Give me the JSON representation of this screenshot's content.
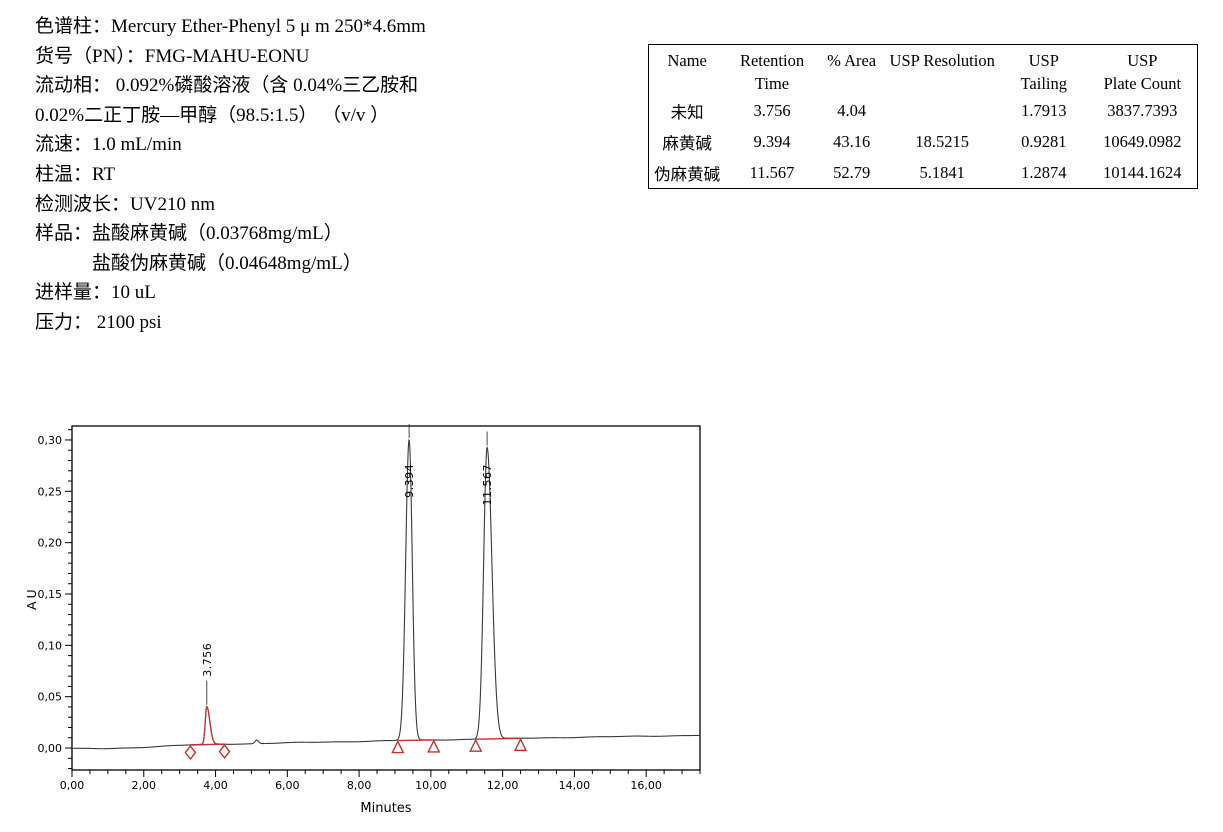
{
  "report": {
    "method_lines": [
      {
        "text": "色谱柱：Mercury Ether-Phenyl  5 μ m 250*4.6mm",
        "indent": false
      },
      {
        "text": "货号（PN）：FMG-MAHU-EONU",
        "indent": false
      },
      {
        "text": "流动相： 0.092%磷酸溶液（含 0.04%三乙胺和",
        "indent": false
      },
      {
        "text": "0.02%二正丁胺—甲醇（98.5:1.5） （v/v ）",
        "indent": false
      },
      {
        "text": "流速：1.0 mL/min",
        "indent": false
      },
      {
        "text": "柱温：RT",
        "indent": false
      },
      {
        "text": "检测波长：UV210 nm",
        "indent": false
      },
      {
        "text": "样品：盐酸麻黄碱（0.03768mg/mL）",
        "indent": false
      },
      {
        "text": "盐酸伪麻黄碱（0.04648mg/mL）",
        "indent": true
      },
      {
        "text": "进样量：10 uL",
        "indent": false
      },
      {
        "text": "压力： 2100 psi",
        "indent": false
      }
    ],
    "table": {
      "headers": [
        {
          "line1": "Name",
          "line2": ""
        },
        {
          "line1": "Retention",
          "line2": "Time"
        },
        {
          "line1": "% Area",
          "line2": ""
        },
        {
          "line1": "USP Resolution",
          "line2": ""
        },
        {
          "line1": "USP",
          "line2": "Tailing"
        },
        {
          "line1": "USP",
          "line2": "Plate Count"
        }
      ],
      "rows": [
        [
          "未知",
          "3.756",
          "4.04",
          "",
          "1.7913",
          "3837.7393"
        ],
        [
          "麻黄碱",
          "9.394",
          "43.16",
          "18.5215",
          "0.9281",
          "10649.0982"
        ],
        [
          "伪麻黄碱",
          "11.567",
          "52.79",
          "5.1841",
          "1.2874",
          "10144.1624"
        ]
      ]
    }
  },
  "chart_data": {
    "type": "line",
    "title": "",
    "xlabel": "Minutes",
    "ylabel": "AU",
    "xlim": [
      0,
      17.5
    ],
    "ylim": [
      -0.0214,
      0.3136
    ],
    "x_major_ticks": [
      {
        "v": 0,
        "label": "0,00"
      },
      {
        "v": 2,
        "label": "2,00"
      },
      {
        "v": 4,
        "label": "4,00"
      },
      {
        "v": 6,
        "label": "6,00"
      },
      {
        "v": 8,
        "label": "8,00"
      },
      {
        "v": 10,
        "label": "10,00"
      },
      {
        "v": 12,
        "label": "12,00"
      },
      {
        "v": 14,
        "label": "14,00"
      },
      {
        "v": 16,
        "label": "16,00"
      }
    ],
    "x_minor_step": 0.5,
    "y_major_ticks": [
      {
        "v": 0.0,
        "label": "0,00"
      },
      {
        "v": 0.05,
        "label": "0,05"
      },
      {
        "v": 0.1,
        "label": "0,10"
      },
      {
        "v": 0.15,
        "label": "0,15"
      },
      {
        "v": 0.2,
        "label": "0,20"
      },
      {
        "v": 0.25,
        "label": "0,25"
      },
      {
        "v": 0.3,
        "label": "0,30"
      }
    ],
    "y_minor_step": 0.01,
    "trace_color": "#3a3a3a",
    "accent_color": "#c53030",
    "grid": false,
    "baseline": [
      [
        0,
        -0.0006
      ],
      [
        0.8,
        -0.0007
      ],
      [
        1.6,
        0.0002
      ],
      [
        2.4,
        0.0015
      ],
      [
        3.2,
        0.0028
      ],
      [
        4.0,
        0.0038
      ],
      [
        5.0,
        0.0042
      ],
      [
        6.0,
        0.005
      ],
      [
        7.0,
        0.0058
      ],
      [
        8.0,
        0.0065
      ],
      [
        9.0,
        0.0072
      ],
      [
        10.0,
        0.0078
      ],
      [
        11.0,
        0.0085
      ],
      [
        12.0,
        0.009
      ],
      [
        13.0,
        0.0098
      ],
      [
        14.0,
        0.0105
      ],
      [
        15.5,
        0.0112
      ],
      [
        17.5,
        0.0125
      ]
    ],
    "peaks": [
      {
        "name": "未知",
        "label": "3.756",
        "rt": 3.756,
        "height": 0.0365,
        "sigma_left": 0.042,
        "sigma_right": 0.085,
        "color": "#c53030",
        "marker": "diamond",
        "int_start": 3.3,
        "int_end": 4.25,
        "area_pct": 4.04,
        "usp_tailing": 1.7913,
        "usp_plate_count": 3837.7393
      },
      {
        "name": "麻黄碱",
        "label": "9.394",
        "rt": 9.394,
        "height": 0.2925,
        "sigma_left": 0.095,
        "sigma_right": 0.087,
        "color": "#3a3a3a",
        "marker": "triangle",
        "int_start": 9.08,
        "int_end": 10.08,
        "area_pct": 43.16,
        "usp_resolution": 18.5215,
        "usp_tailing": 0.9281,
        "usp_plate_count": 10649.0982
      },
      {
        "name": "伪麻黄碱",
        "label": "11.567",
        "rt": 11.567,
        "height": 0.284,
        "sigma_left": 0.096,
        "sigma_right": 0.134,
        "color": "#3a3a3a",
        "marker": "triangle",
        "int_start": 11.25,
        "int_end": 12.5,
        "area_pct": 52.79,
        "usp_resolution": 5.1841,
        "usp_tailing": 1.2874,
        "usp_plate_count": 10144.1624
      }
    ],
    "artifacts": [
      {
        "t": 5.15,
        "height": 0.0035,
        "sigma": 0.05
      }
    ]
  }
}
